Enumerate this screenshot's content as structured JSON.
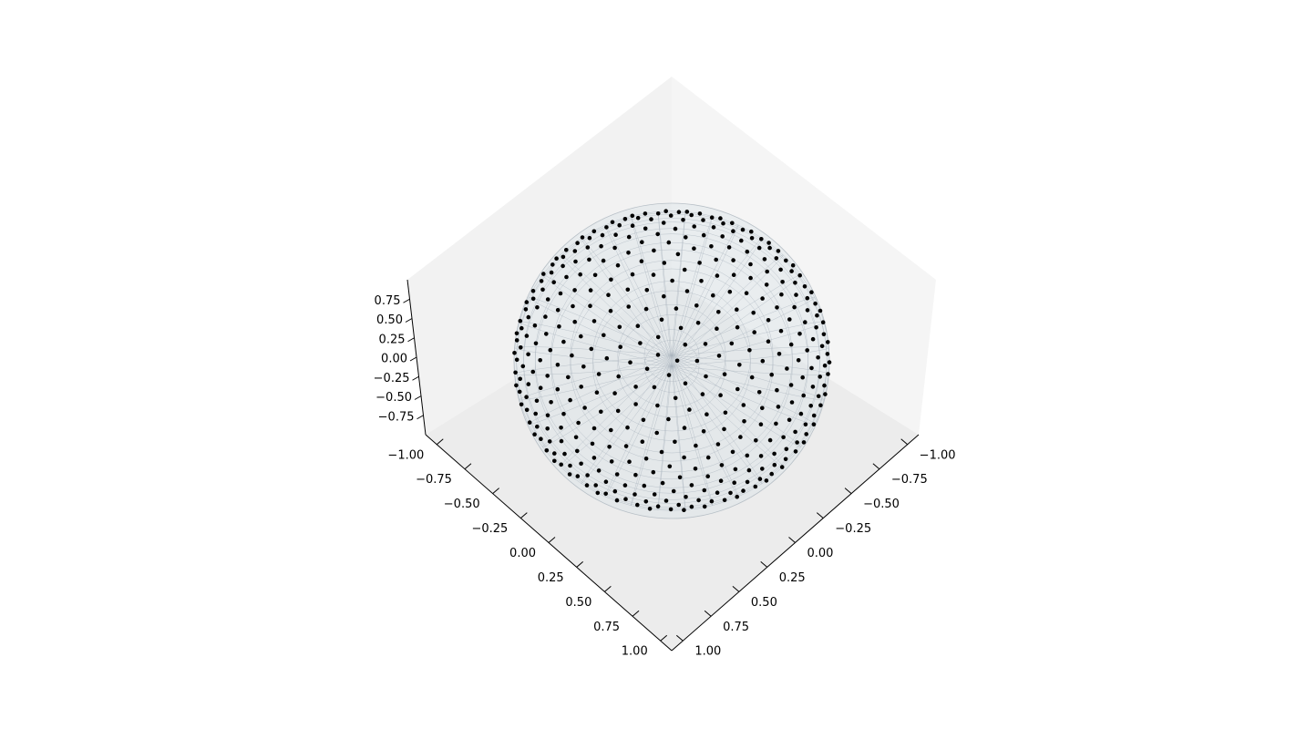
{
  "chart_data": {
    "type": "scatter",
    "projection": "3d",
    "view": "top-down oblique (looking along +z, rotated 45 degrees)",
    "surface": "unit sphere wireframe, translucent grey",
    "points": "fibonacci-distributed sample on the upper hemisphere of the unit sphere (~400 points)",
    "point_color": "#000000",
    "surface_color": "#a9b4bd",
    "pane_colors": [
      "#f2f2f2",
      "#f5f5f5",
      "#ebebeb"
    ],
    "axes": {
      "x": {
        "ticks": [
          -1.0,
          -0.75,
          -0.5,
          -0.25,
          0.0,
          0.25,
          0.5,
          0.75,
          1.0
        ],
        "tick_labels": [
          "−1.00",
          "−0.75",
          "−0.50",
          "−0.25",
          "0.00",
          "0.25",
          "0.50",
          "0.75",
          "1.00"
        ],
        "lim": [
          -1.1,
          1.1
        ]
      },
      "y": {
        "ticks": [
          -1.0,
          -0.75,
          -0.5,
          -0.25,
          0.0,
          0.25,
          0.5,
          0.75,
          1.0
        ],
        "tick_labels": [
          "−1.00",
          "−0.75",
          "−0.50",
          "−0.25",
          "0.00",
          "0.25",
          "0.50",
          "0.75",
          "1.00"
        ],
        "lim": [
          -1.1,
          1.1
        ]
      },
      "z": {
        "ticks": [
          -0.75,
          -0.5,
          -0.25,
          0.0,
          0.25,
          0.5,
          0.75
        ],
        "tick_labels": [
          "−0.75",
          "−0.50",
          "−0.25",
          "0.00",
          "0.25",
          "0.50",
          "0.75"
        ],
        "lim": [
          -1.0,
          1.0
        ]
      }
    },
    "title": "",
    "xlabel": "",
    "ylabel": "",
    "zlabel": "",
    "grid": false
  }
}
